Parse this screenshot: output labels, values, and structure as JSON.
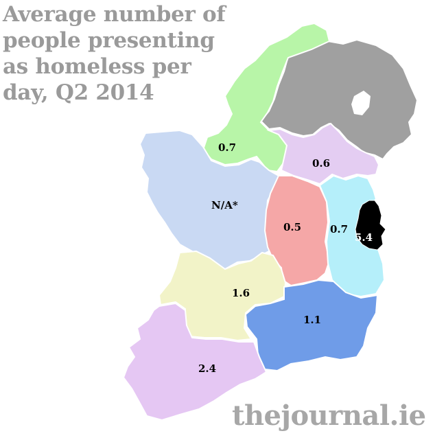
{
  "title": {
    "lines": [
      "Average number of",
      "people presenting",
      "as homeless per",
      "day, Q2 2014"
    ]
  },
  "regions": [
    {
      "id": "north-west",
      "label": "0.7",
      "color": "#b8f5a8"
    },
    {
      "id": "north-east",
      "label": "0.6",
      "color": "#e4cdf2"
    },
    {
      "id": "west",
      "label": "N/A*",
      "color": "#c9d9f3"
    },
    {
      "id": "midlands",
      "label": "0.5",
      "color": "#f5a7a7"
    },
    {
      "id": "mid-east",
      "label": "0.7",
      "color": "#b5effa"
    },
    {
      "id": "dublin",
      "label": "5.4",
      "color": "#000000"
    },
    {
      "id": "mid-west",
      "label": "1.6",
      "color": "#f2f3c8"
    },
    {
      "id": "south-east",
      "label": "1.1",
      "color": "#6f9ce8"
    },
    {
      "id": "south-west",
      "label": "2.4",
      "color": "#e5c7f3"
    },
    {
      "id": "northern-ireland",
      "label": "",
      "color": "#a0a0a0"
    }
  ],
  "brand": "thejournal.ie"
}
